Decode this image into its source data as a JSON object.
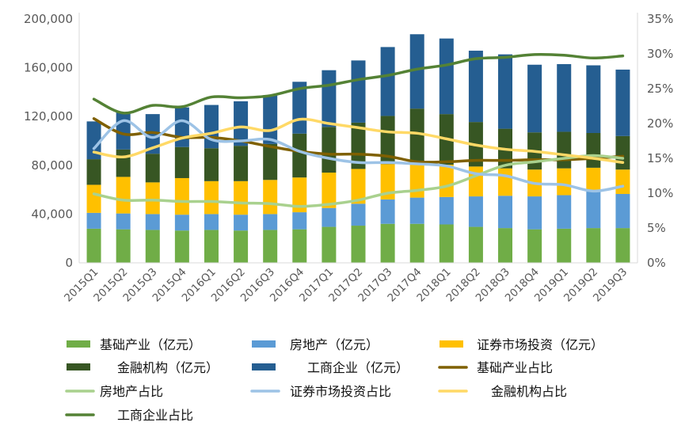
{
  "chart_data": {
    "type": "bar",
    "stacked": true,
    "categories": [
      "2015Q1",
      "2015Q2",
      "2015Q3",
      "2015Q4",
      "2016Q1",
      "2016Q2",
      "2016Q3",
      "2016Q4",
      "2017Q1",
      "2017Q2",
      "2017Q3",
      "2017Q4",
      "2018Q1",
      "2018Q2",
      "2018Q3",
      "2018Q4",
      "2019Q1",
      "2019Q2",
      "2019Q3"
    ],
    "ylim": [
      0,
      200000
    ],
    "yticks": [
      "0",
      "40,000",
      "80,000",
      "120,000",
      "160,000",
      "200,000"
    ],
    "ylim_right": [
      0,
      35
    ],
    "yticks_right": [
      "0%",
      "5%",
      "10%",
      "15%",
      "20%",
      "25%",
      "30%",
      "35%"
    ],
    "grid": false,
    "legend_position": "bottom",
    "series": [
      {
        "name": "基础产业（亿元）",
        "kind": "bar",
        "axis": "left",
        "color": "#70AD47",
        "values": [
          28000,
          27500,
          27000,
          26500,
          27000,
          26500,
          27000,
          27500,
          29500,
          30500,
          32000,
          32000,
          31500,
          29500,
          28500,
          27500,
          28000,
          28500,
          28500
        ]
      },
      {
        "name": "房地产（亿元）",
        "kind": "bar",
        "axis": "left",
        "color": "#5B9BD5",
        "values": [
          13000,
          13000,
          13000,
          13000,
          13000,
          13000,
          13000,
          14000,
          15500,
          18000,
          20000,
          21500,
          22500,
          25000,
          26500,
          27000,
          27500,
          30000,
          28000
        ]
      },
      {
        "name": "证券市场投资（亿元）",
        "kind": "bar",
        "axis": "left",
        "color": "#FFC000",
        "values": [
          23000,
          30000,
          26000,
          30000,
          27000,
          27500,
          28000,
          28500,
          29000,
          28500,
          29000,
          28000,
          26500,
          24500,
          22500,
          22000,
          22000,
          19500,
          20000
        ]
      },
      {
        "name": "金融机构（亿元）",
        "kind": "bar",
        "axis": "left",
        "color": "#375623",
        "values": [
          21000,
          22500,
          23500,
          25500,
          27000,
          29000,
          29500,
          36000,
          37500,
          38000,
          39500,
          45000,
          41500,
          36500,
          32500,
          30500,
          30000,
          28500,
          27500
        ]
      },
      {
        "name": "工商企业（亿元）",
        "kind": "bar",
        "axis": "left",
        "color": "#255E91",
        "values": [
          31000,
          30500,
          32500,
          32500,
          35500,
          36500,
          40000,
          42500,
          46500,
          51000,
          56500,
          61000,
          62000,
          58500,
          61000,
          55500,
          55500,
          55500,
          54500
        ]
      },
      {
        "name": "基础产业占比",
        "kind": "line",
        "axis": "right",
        "color": "#7F6000",
        "values": [
          20.7,
          18.5,
          18.7,
          18.0,
          18.0,
          17.5,
          16.7,
          16.0,
          15.6,
          15.6,
          15.3,
          14.5,
          14.5,
          14.7,
          14.7,
          14.8,
          14.8,
          15.0,
          15.3
        ]
      },
      {
        "name": "房地产占比",
        "kind": "line",
        "axis": "right",
        "color": "#A9D18E",
        "values": [
          9.9,
          9.0,
          9.0,
          8.8,
          8.8,
          8.6,
          8.5,
          8.1,
          8.4,
          9.0,
          10.0,
          10.4,
          11.0,
          12.5,
          14.0,
          14.5,
          15.0,
          15.4,
          15.0
        ]
      },
      {
        "name": "证券市场投资占比",
        "kind": "line",
        "axis": "right",
        "color": "#9DC3E6",
        "values": [
          16.4,
          20.4,
          18.0,
          20.4,
          17.7,
          17.5,
          17.7,
          16.0,
          15.0,
          14.4,
          14.4,
          14.2,
          13.9,
          12.8,
          12.5,
          11.4,
          11.2,
          10.3,
          11.0
        ]
      },
      {
        "name": "金融机构占比",
        "kind": "line",
        "axis": "right",
        "color": "#FFD966",
        "values": [
          15.9,
          15.2,
          16.5,
          17.9,
          18.6,
          19.5,
          19.0,
          20.6,
          20.0,
          19.4,
          18.8,
          18.6,
          17.8,
          16.9,
          16.3,
          16.0,
          15.5,
          15.0,
          14.4
        ]
      },
      {
        "name": "工商企业占比",
        "kind": "line",
        "axis": "right",
        "color": "#548235",
        "values": [
          23.5,
          21.5,
          22.6,
          22.4,
          23.8,
          23.7,
          24.0,
          25.0,
          25.5,
          26.3,
          26.9,
          27.8,
          28.4,
          29.3,
          29.5,
          29.9,
          29.8,
          29.4,
          29.7
        ]
      }
    ]
  }
}
